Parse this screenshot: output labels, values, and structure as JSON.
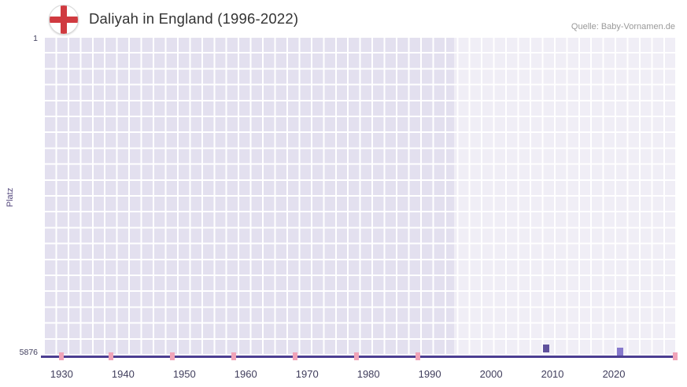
{
  "header": {
    "title": "Daliyah in England (1996-2022)",
    "source": "Quelle: Baby-Vornamen.de",
    "flag_icon": "england-flag"
  },
  "chart_data": {
    "type": "scatter",
    "title": "Daliyah in England (1996-2022)",
    "ylabel": "Platz",
    "y_axis": {
      "labels": [
        "1",
        "5876"
      ],
      "min": 1,
      "max": 5876,
      "inverted": true
    },
    "x_axis": {
      "tick_years": [
        1930,
        1940,
        1950,
        1960,
        1970,
        1980,
        1990,
        2000,
        2010,
        2020
      ],
      "domain_start": 1927,
      "domain_end": 2030
    },
    "highlight_region": {
      "start_year": 1994,
      "end_year": 2030
    },
    "points": [
      {
        "year": 2009,
        "rank": 5750
      },
      {
        "year": 2021,
        "rank": 5800
      }
    ],
    "axis_tick_marks_years": [
      1930,
      1938,
      1948,
      1958,
      1968,
      1978,
      1988,
      2030
    ],
    "grid": true,
    "legend": false
  },
  "colors": {
    "title_text": "#333333",
    "source_text": "#999999",
    "axis_text": "#3f3d5c",
    "ylabel_text": "#55497e",
    "axis_line": "#4c3e92",
    "grid_cell": "#e3e0ef",
    "grid_line": "#ffffff",
    "highlight_overlay": "rgba(255,255,255,0.45)",
    "pink_tick": "#f0a3b8",
    "point_colors": [
      "#5f519c",
      "#8678cc"
    ],
    "flag_red": "#d03a40",
    "flag_ring": "#d8d8d8"
  }
}
